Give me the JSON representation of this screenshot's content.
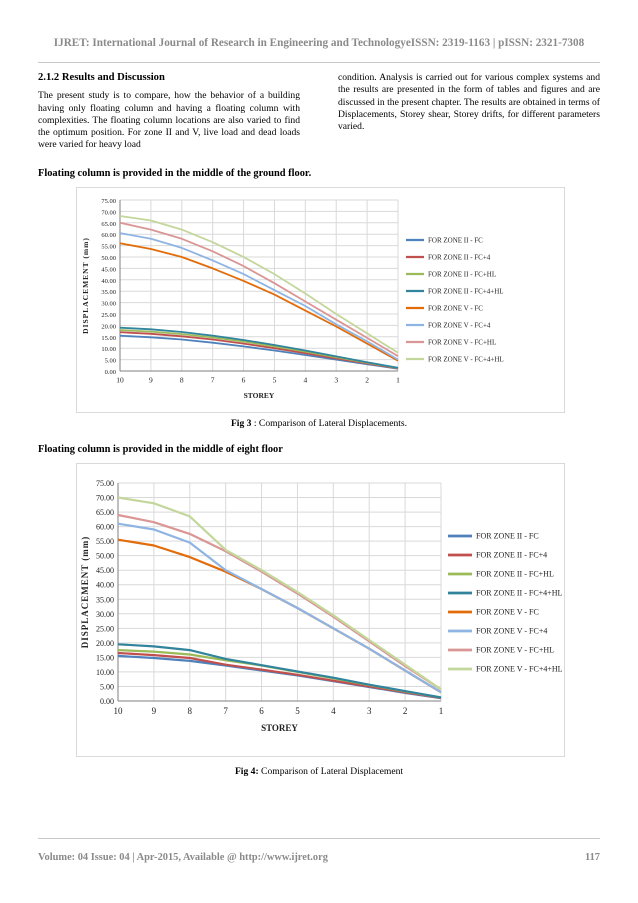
{
  "header": {
    "text": "IJRET: International Journal of Research in Engineering and TechnologyeISSN: 2319-1163 | pISSN: 2321-7308"
  },
  "section": {
    "heading": "2.1.2 Results and Discussion",
    "left_text": "The present study is to compare, how the behavior of a building having only floating column and having a floating column with complexities. The floating column locations are also varied to find the optimum position. For zone II and V, live load and dead loads were varied for heavy load",
    "right_text": "condition. Analysis is carried out for various complex systems and the results are presented in the form of tables and figures and are discussed in the present chapter. The results are obtained in terms of Displacements, Storey shear, Storey drifts, for different parameters varied."
  },
  "figures": [
    {
      "title": "Floating column is provided in the middle of the ground floor.",
      "caption_label": "Fig 3",
      "caption_text": " : Comparison of Lateral Displacements."
    },
    {
      "title": "Floating column is provided in the middle of eight floor",
      "caption_label": "Fig 4:",
      "caption_text": " Comparison of Lateral Displacement"
    }
  ],
  "footer": {
    "left": "Volume: 04 Issue: 04 | Apr-2015, Available @ http://www.ijret.org",
    "right": "117"
  },
  "chart_data": [
    {
      "type": "line",
      "xlabel": "STOREY",
      "ylabel": "DISPLACEMENT (mm)",
      "x": [
        "10",
        "9",
        "8",
        "7",
        "6",
        "5",
        "4",
        "3",
        "2",
        "1"
      ],
      "ylim": [
        0,
        75
      ],
      "yticks": [
        "0.00",
        "5.00",
        "10.00",
        "15.00",
        "20.00",
        "25.00",
        "30.00",
        "35.00",
        "40.00",
        "45.00",
        "50.00",
        "55.00",
        "60.00",
        "65.00",
        "70.00",
        "75.00"
      ],
      "grid": true,
      "legend": "right",
      "series": [
        {
          "name": "FOR ZONE II - FC",
          "color": "#4f81bd",
          "values": [
            15.5,
            14.8,
            13.8,
            12.4,
            10.8,
            9.0,
            7.0,
            5.0,
            3.0,
            1.0
          ]
        },
        {
          "name": "FOR ZONE II - FC+4",
          "color": "#c0504d",
          "values": [
            17.0,
            16.3,
            15.2,
            13.8,
            12.0,
            10.0,
            7.8,
            5.5,
            3.3,
            1.2
          ]
        },
        {
          "name": "FOR ZONE II - FC+HL",
          "color": "#9bbb59",
          "values": [
            18.0,
            17.3,
            16.2,
            14.7,
            12.9,
            10.8,
            8.5,
            6.0,
            3.6,
            1.3
          ]
        },
        {
          "name": "FOR ZONE II - FC+4+HL",
          "color": "#31849b",
          "values": [
            19.0,
            18.3,
            17.1,
            15.5,
            13.6,
            11.4,
            9.0,
            6.4,
            3.8,
            1.4
          ]
        },
        {
          "name": "FOR ZONE V - FC",
          "color": "#e36c0a",
          "values": [
            56.0,
            53.5,
            50.0,
            45.0,
            39.5,
            33.5,
            26.5,
            19.5,
            12.0,
            4.5
          ]
        },
        {
          "name": "FOR ZONE V - FC+4",
          "color": "#8eb4e3",
          "values": [
            60.5,
            58.0,
            54.0,
            48.5,
            42.5,
            35.5,
            28.5,
            20.5,
            13.0,
            5.0
          ]
        },
        {
          "name": "FOR ZONE V - FC+HL",
          "color": "#d99694",
          "values": [
            65.0,
            62.0,
            58.0,
            52.5,
            46.0,
            38.5,
            30.5,
            22.5,
            14.5,
            6.5
          ]
        },
        {
          "name": "FOR ZONE V - FC+4+HL",
          "color": "#c3d69b",
          "values": [
            68.0,
            66.0,
            62.0,
            56.5,
            50.0,
            42.5,
            34.0,
            25.0,
            16.5,
            8.0
          ]
        }
      ]
    },
    {
      "type": "line",
      "xlabel": "STOREY",
      "ylabel": "DISPLACEMENT (mm)",
      "x": [
        "10",
        "9",
        "8",
        "7",
        "6",
        "5",
        "4",
        "3",
        "2",
        "1"
      ],
      "ylim": [
        0,
        75
      ],
      "yticks": [
        "0.00",
        "5.00",
        "10.00",
        "15.00",
        "20.00",
        "25.00",
        "30.00",
        "35.00",
        "40.00",
        "45.00",
        "50.00",
        "55.00",
        "60.00",
        "65.00",
        "70.00",
        "75.00"
      ],
      "grid": true,
      "legend": "right",
      "series": [
        {
          "name": "FOR ZONE II - FC",
          "color": "#4f81bd",
          "values": [
            15.5,
            14.8,
            13.8,
            12.2,
            10.5,
            8.8,
            6.8,
            4.8,
            2.8,
            1.0
          ]
        },
        {
          "name": "FOR ZONE II - FC+4",
          "color": "#c0504d",
          "values": [
            16.5,
            15.8,
            14.8,
            12.5,
            10.8,
            9.0,
            7.0,
            5.0,
            3.0,
            1.0
          ]
        },
        {
          "name": "FOR ZONE II - FC+HL",
          "color": "#9bbb59",
          "values": [
            17.5,
            17.0,
            16.0,
            14.0,
            12.2,
            10.0,
            7.8,
            5.5,
            3.3,
            1.2
          ]
        },
        {
          "name": "FOR ZONE II - FC+4+HL",
          "color": "#31849b",
          "values": [
            19.5,
            18.8,
            17.5,
            14.5,
            12.3,
            10.2,
            8.0,
            5.6,
            3.4,
            1.2
          ]
        },
        {
          "name": "FOR ZONE V - FC",
          "color": "#e36c0a",
          "values": [
            55.5,
            53.5,
            49.5,
            44.5,
            38.5,
            32.0,
            25.0,
            18.0,
            10.5,
            3.0
          ]
        },
        {
          "name": "FOR ZONE V - FC+4",
          "color": "#8eb4e3",
          "values": [
            61.0,
            59.0,
            54.5,
            45.0,
            38.5,
            32.0,
            25.0,
            18.0,
            10.5,
            3.0
          ]
        },
        {
          "name": "FOR ZONE V - FC+HL",
          "color": "#d99694",
          "values": [
            64.0,
            61.5,
            57.5,
            51.5,
            44.5,
            37.0,
            29.0,
            20.5,
            12.0,
            4.0
          ]
        },
        {
          "name": "FOR ZONE V - FC+4+HL",
          "color": "#c3d69b",
          "values": [
            70.0,
            68.0,
            63.5,
            52.0,
            45.0,
            37.5,
            29.5,
            21.0,
            12.5,
            4.0
          ]
        }
      ]
    }
  ]
}
